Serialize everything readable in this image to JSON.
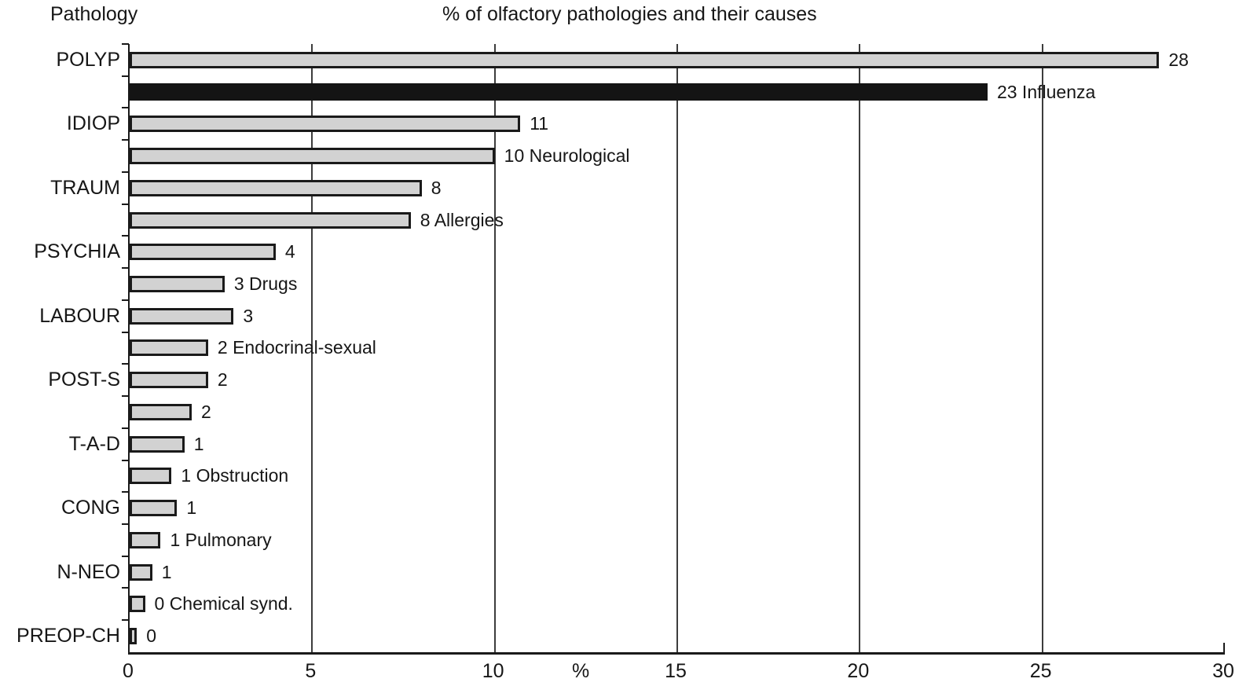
{
  "header": {
    "pathology_label": "Pathology",
    "chart_title": "% of olfactory pathologies and their causes"
  },
  "chart_data": {
    "type": "bar",
    "orientation": "horizontal",
    "title": "% of olfactory pathologies and their causes",
    "ylabel": "Pathology",
    "xlabel": "%",
    "xlim": [
      0,
      30
    ],
    "x_ticks": [
      "0",
      "5",
      "10",
      "15",
      "20",
      "25",
      "30"
    ],
    "x_tick_values": [
      0,
      5,
      10,
      15,
      20,
      25,
      30
    ],
    "gridline_values": [
      5,
      10,
      15,
      20,
      25
    ],
    "grid": true,
    "legend": "none",
    "colors": {
      "bar_fill": "#d2d2d2",
      "bar_border": "#1a1a1a",
      "highlight_bar": "#141414",
      "gridline": "#3d3d3d",
      "axis": "#1a1a1a",
      "text": "#161616"
    },
    "rows": [
      {
        "category": "POLYP",
        "cause": "",
        "label": "28",
        "value": 28,
        "bar_length": 28.2,
        "highlight": false
      },
      {
        "category": "",
        "cause": "Influenza",
        "label": "23 Influenza",
        "value": 23,
        "bar_length": 23.5,
        "highlight": true
      },
      {
        "category": "IDIOP",
        "cause": "",
        "label": "11",
        "value": 11,
        "bar_length": 10.7,
        "highlight": false
      },
      {
        "category": "",
        "cause": "Neurological",
        "label": "10 Neurological",
        "value": 10,
        "bar_length": 10.0,
        "highlight": false
      },
      {
        "category": "TRAUM",
        "cause": "",
        "label": "8",
        "value": 8,
        "bar_length": 8.0,
        "highlight": false
      },
      {
        "category": "",
        "cause": "Allergies",
        "label": "8 Allergies",
        "value": 8,
        "bar_length": 7.7,
        "highlight": false
      },
      {
        "category": "PSYCHIA",
        "cause": "",
        "label": "4",
        "value": 4,
        "bar_length": 4.0,
        "highlight": false
      },
      {
        "category": "",
        "cause": "Drugs",
        "label": "3 Drugs",
        "value": 3,
        "bar_length": 2.6,
        "highlight": false
      },
      {
        "category": "LABOUR",
        "cause": "",
        "label": "3",
        "value": 3,
        "bar_length": 2.85,
        "highlight": false
      },
      {
        "category": "",
        "cause": "Endocrinal-sexual",
        "label": "2 Endocrinal-sexual",
        "value": 2,
        "bar_length": 2.15,
        "highlight": false
      },
      {
        "category": "POST-S",
        "cause": "",
        "label": "2",
        "value": 2,
        "bar_length": 2.15,
        "highlight": false
      },
      {
        "category": "",
        "cause": "",
        "label": "2",
        "value": 2,
        "bar_length": 1.7,
        "highlight": false
      },
      {
        "category": "T-A-D",
        "cause": "",
        "label": "1",
        "value": 1,
        "bar_length": 1.5,
        "highlight": false
      },
      {
        "category": "",
        "cause": "Obstruction",
        "label": "1 Obstruction",
        "value": 1,
        "bar_length": 1.15,
        "highlight": false
      },
      {
        "category": "CONG",
        "cause": "",
        "label": "1",
        "value": 1,
        "bar_length": 1.3,
        "highlight": false
      },
      {
        "category": "",
        "cause": "Pulmonary",
        "label": "1 Pulmonary",
        "value": 1,
        "bar_length": 0.85,
        "highlight": false
      },
      {
        "category": "N-NEO",
        "cause": "",
        "label": "1",
        "value": 1,
        "bar_length": 0.62,
        "highlight": false
      },
      {
        "category": "",
        "cause": "Chemical synd.",
        "label": "0 Chemical synd.",
        "value": 0,
        "bar_length": 0.42,
        "highlight": false
      },
      {
        "category": "PREOP-CH",
        "cause": "",
        "label": "0",
        "value": 0,
        "bar_length": 0.2,
        "highlight": false
      }
    ]
  }
}
